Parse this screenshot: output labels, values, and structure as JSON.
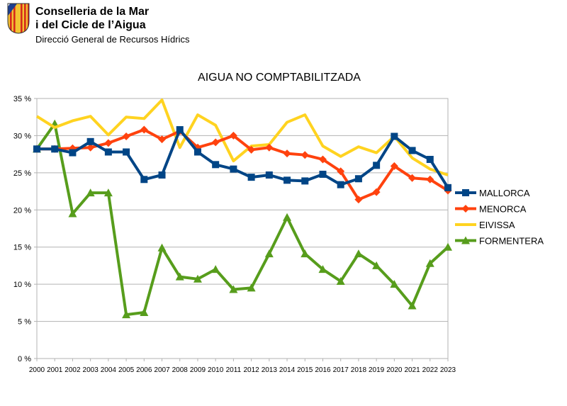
{
  "header": {
    "org_line1": "Conselleria de la Mar",
    "org_line2": "i del Cicle de l’Aigua",
    "department": "Direcció General de Recursos Hídrics",
    "logo_icon": "balearic-coat-of-arms-icon",
    "logo_colors": {
      "gold": "#f2c232",
      "red": "#d62a1c",
      "blue": "#1d3f8f"
    }
  },
  "chart_data": {
    "type": "line",
    "title": "AIGUA NO COMPTABILITZADA",
    "xlabel": "",
    "ylabel": "",
    "ylim": [
      0,
      35
    ],
    "ytick_values": [
      0,
      5,
      10,
      15,
      20,
      25,
      30,
      35
    ],
    "ytick_labels": [
      "0 %",
      "5 %",
      "10 %",
      "15 %",
      "20 %",
      "25 %",
      "30 %",
      "35 %"
    ],
    "categories": [
      "2000",
      "2001",
      "2002",
      "2003",
      "2004",
      "2005",
      "2006",
      "2007",
      "2008",
      "2009",
      "2010",
      "2011",
      "2012",
      "2013",
      "2014",
      "2015",
      "2016",
      "2017",
      "2018",
      "2019",
      "2020",
      "2021",
      "2022",
      "2023"
    ],
    "grid": true,
    "legend_position": "right",
    "series": [
      {
        "name": "MALLORCA",
        "color": "#004586",
        "marker": "square",
        "values": [
          28.2,
          28.2,
          27.7,
          29.2,
          27.8,
          27.8,
          24.1,
          24.7,
          30.8,
          27.8,
          26.1,
          25.5,
          24.4,
          24.7,
          24.0,
          23.9,
          24.8,
          23.4,
          24.2,
          26.0,
          29.9,
          28.0,
          26.8,
          23.0
        ]
      },
      {
        "name": "MENORCA",
        "color": "#ff420e",
        "marker": "diamond",
        "values": [
          28.2,
          28.2,
          28.3,
          28.4,
          29.0,
          29.9,
          30.8,
          29.5,
          30.6,
          28.4,
          29.1,
          30.0,
          28.1,
          28.4,
          27.6,
          27.4,
          26.8,
          25.2,
          21.4,
          22.4,
          25.9,
          24.3,
          24.1,
          22.6
        ]
      },
      {
        "name": "EIVISSA",
        "color": "#ffd320",
        "marker": "none",
        "values": [
          32.6,
          31.1,
          32.0,
          32.6,
          30.1,
          32.5,
          32.3,
          34.8,
          28.4,
          32.8,
          31.4,
          26.6,
          28.6,
          28.8,
          31.8,
          32.8,
          28.6,
          27.2,
          28.5,
          27.7,
          29.9,
          27.0,
          25.5,
          24.7
        ]
      },
      {
        "name": "FORMENTERA",
        "color": "#579d1c",
        "marker": "triangle",
        "values": [
          28.2,
          31.6,
          19.5,
          22.3,
          22.3,
          5.9,
          6.2,
          14.9,
          11.0,
          10.7,
          12.0,
          9.3,
          9.5,
          14.1,
          19.0,
          14.1,
          12.0,
          10.4,
          14.1,
          12.5,
          10.0,
          7.1,
          12.8,
          15.0
        ]
      }
    ]
  }
}
